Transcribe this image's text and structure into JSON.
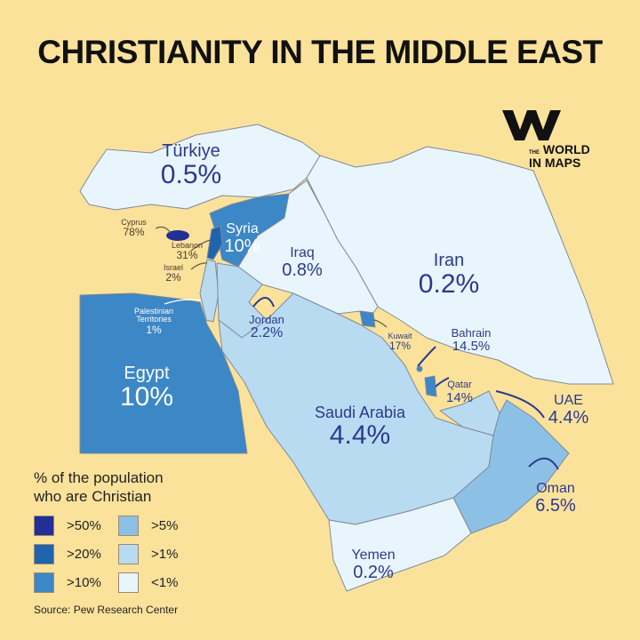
{
  "title": "CHRISTIANITY IN THE MIDDLE EAST",
  "logo": {
    "the": "THE",
    "line1": "WORLD",
    "line2": "IN MAPS"
  },
  "colors": {
    "background": "#fbe29b",
    "gt50": "#232f96",
    "gt20": "#1f64ad",
    "gt10": "#3c87c6",
    "gt5": "#8cc0e4",
    "gt1": "#b9dbf1",
    "lt1": "#e9f5fc"
  },
  "countries": {
    "turkiye": {
      "name": "Türkiye",
      "value": "0.5%",
      "category": "<1%"
    },
    "cyprus": {
      "name": "Cyprus",
      "value": "78%",
      "category": ">50%"
    },
    "lebanon": {
      "name": "Lebanon",
      "value": "31%",
      "category": ">20%"
    },
    "israel": {
      "name": "Israel",
      "value": "2%",
      "category": ">1%"
    },
    "syria": {
      "name": "Syria",
      "value": "10%",
      "category": ">10%"
    },
    "palestine": {
      "name": "Palestinian Territories",
      "value": "1%",
      "category": ">1%"
    },
    "jordan": {
      "name": "Jordan",
      "value": "2.2%",
      "category": ">1%"
    },
    "iraq": {
      "name": "Iraq",
      "value": "0.8%",
      "category": "<1%"
    },
    "iran": {
      "name": "Iran",
      "value": "0.2%",
      "category": "<1%"
    },
    "egypt": {
      "name": "Egypt",
      "value": "10%",
      "category": ">10%"
    },
    "kuwait": {
      "name": "Kuwait",
      "value": "17%",
      "category": ">10%"
    },
    "bahrain": {
      "name": "Bahrain",
      "value": "14.5%",
      "category": ">10%"
    },
    "qatar": {
      "name": "Qatar",
      "value": "14%",
      "category": ">10%"
    },
    "saudi": {
      "name": "Saudi Arabia",
      "value": "4.4%",
      "category": ">1%"
    },
    "uae": {
      "name": "UAE",
      "value": "4.4%",
      "category": ">1%"
    },
    "oman": {
      "name": "Oman",
      "value": "6.5%",
      "category": ">5%"
    },
    "yemen": {
      "name": "Yemen",
      "value": "0.2%",
      "category": "<1%"
    }
  },
  "legend": {
    "title": "% of the population who are Christian",
    "items": [
      ">50%",
      ">5%",
      ">20%",
      ">1%",
      ">10%",
      "<1%"
    ],
    "source": "Source: Pew Research Center"
  }
}
